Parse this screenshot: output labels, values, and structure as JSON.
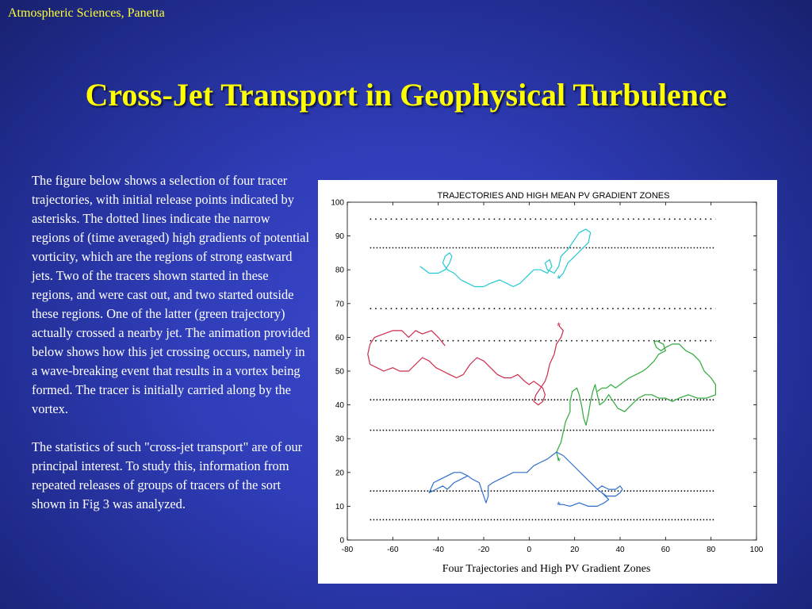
{
  "header": {
    "label": "Atmospheric Sciences, Panetta"
  },
  "slide_title": "Cross-Jet Transport in Geophysical Turbulence",
  "paragraphs": [
    "The figure below shows a selection of four tracer trajectories, with initial release points indicated by asterisks.  The dotted lines indicate the narrow regions of (time averaged) high gradients of potential vorticity, which are the regions of strong eastward jets.  Two of the tracers shown started in these regions, and were cast out, and two started outside these regions.  One of the latter (green trajectory) actually crossed a nearby jet.  The animation provided below shows how this jet crossing occurs, namely in a wave-breaking event that results in a vortex being formed.  The tracer is initially carried along by the vortex.",
    "The statistics of such \"cross-jet transport\" are of our principal interest.  To study this, information from repeated releases of groups of tracers of the sort shown in Fig 3 was analyzed."
  ],
  "chart_data": {
    "type": "line",
    "title": "TRAJECTORIES AND HIGH MEAN PV GRADIENT ZONES",
    "xlabel": "Four Trajectories and High PV Gradient Zones",
    "ylabel": "",
    "xlim": [
      -80,
      100
    ],
    "ylim": [
      0,
      100
    ],
    "xticks": [
      "-80",
      "-60",
      "-40",
      "-20",
      "0",
      "20",
      "40",
      "60",
      "80",
      "100"
    ],
    "yticks": [
      "0",
      "10",
      "20",
      "30",
      "40",
      "50",
      "60",
      "70",
      "80",
      "90",
      "100"
    ],
    "xtick_values": [
      -80,
      -60,
      -40,
      -20,
      0,
      20,
      40,
      60,
      80,
      100
    ],
    "ytick_values": [
      0,
      10,
      20,
      30,
      40,
      50,
      60,
      70,
      80,
      90,
      100
    ],
    "zone_lines": [
      {
        "y": 95,
        "x": [
          -70,
          82
        ],
        "style": "sparse"
      },
      {
        "y": 86.5,
        "x": [
          -70,
          82
        ],
        "style": "dense"
      },
      {
        "y": 68.5,
        "x": [
          -70,
          82
        ],
        "style": "sparse"
      },
      {
        "y": 59,
        "x": [
          -70,
          82
        ],
        "style": "sparse"
      },
      {
        "y": 41.5,
        "x": [
          -70,
          82
        ],
        "style": "dense"
      },
      {
        "y": 32.5,
        "x": [
          -70,
          82
        ],
        "style": "dense"
      },
      {
        "y": 14.5,
        "x": [
          -70,
          82
        ],
        "style": "dense"
      },
      {
        "y": 6,
        "x": [
          -70,
          82
        ],
        "style": "dense"
      }
    ],
    "series": [
      {
        "color": "#22c8d2",
        "release": [
          13,
          77.5
        ],
        "points": [
          [
            -48,
            81
          ],
          [
            -44,
            79
          ],
          [
            -40,
            79
          ],
          [
            -37,
            80
          ],
          [
            -35,
            82
          ],
          [
            -34,
            84
          ],
          [
            -35,
            85
          ],
          [
            -37,
            84
          ],
          [
            -38,
            82
          ],
          [
            -36,
            80
          ],
          [
            -33,
            79
          ],
          [
            -30,
            77
          ],
          [
            -27,
            76
          ],
          [
            -24,
            75
          ],
          [
            -20,
            75
          ],
          [
            -17,
            76
          ],
          [
            -13,
            77
          ],
          [
            -10,
            76
          ],
          [
            -7,
            75
          ],
          [
            -4,
            76
          ],
          [
            -1,
            78
          ],
          [
            2,
            80
          ],
          [
            5,
            80
          ],
          [
            8,
            79
          ],
          [
            10,
            81
          ],
          [
            9,
            83
          ],
          [
            7,
            82
          ],
          [
            8,
            80
          ],
          [
            11,
            79
          ],
          [
            13,
            81
          ],
          [
            14,
            84
          ],
          [
            17,
            86
          ],
          [
            20,
            89
          ],
          [
            22,
            91
          ],
          [
            25,
            92
          ],
          [
            27,
            91
          ],
          [
            26,
            88
          ],
          [
            23,
            86
          ],
          [
            20,
            84
          ],
          [
            17,
            82
          ],
          [
            15,
            79
          ],
          [
            13,
            77.5
          ]
        ]
      },
      {
        "color": "#cc2b4a",
        "release": [
          13,
          63.5
        ],
        "points": [
          [
            -37,
            57.5
          ],
          [
            -40,
            60
          ],
          [
            -43,
            62
          ],
          [
            -47,
            61
          ],
          [
            -50,
            62
          ],
          [
            -53,
            60
          ],
          [
            -56,
            62
          ],
          [
            -60,
            62
          ],
          [
            -64,
            61
          ],
          [
            -68,
            60
          ],
          [
            -70,
            58
          ],
          [
            -71,
            55
          ],
          [
            -70,
            52
          ],
          [
            -67,
            51
          ],
          [
            -64,
            50
          ],
          [
            -60,
            51
          ],
          [
            -57,
            50
          ],
          [
            -53,
            50
          ],
          [
            -50,
            52
          ],
          [
            -47,
            54
          ],
          [
            -44,
            53
          ],
          [
            -41,
            51
          ],
          [
            -38,
            50
          ],
          [
            -35,
            49
          ],
          [
            -32,
            48
          ],
          [
            -29,
            49
          ],
          [
            -26,
            52
          ],
          [
            -23,
            54
          ],
          [
            -20,
            53
          ],
          [
            -17,
            51
          ],
          [
            -14,
            49
          ],
          [
            -11,
            48
          ],
          [
            -8,
            48
          ],
          [
            -5,
            49
          ],
          [
            -2,
            47
          ],
          [
            0,
            46
          ],
          [
            2,
            47
          ],
          [
            4,
            46
          ],
          [
            6,
            45
          ],
          [
            7,
            43
          ],
          [
            6,
            41
          ],
          [
            4,
            40
          ],
          [
            2,
            41
          ],
          [
            3,
            43
          ],
          [
            5,
            45
          ],
          [
            7,
            47
          ],
          [
            8,
            49
          ],
          [
            9,
            52
          ],
          [
            11,
            55
          ],
          [
            12,
            58
          ],
          [
            14,
            60
          ],
          [
            15,
            62
          ],
          [
            13,
            63.5
          ]
        ]
      },
      {
        "color": "#2eaa3a",
        "release": [
          13,
          23.5
        ],
        "points": [
          [
            13,
            23.5
          ],
          [
            12,
            26
          ],
          [
            14,
            29
          ],
          [
            15,
            32
          ],
          [
            16,
            35
          ],
          [
            18,
            38
          ],
          [
            18,
            41
          ],
          [
            19,
            44
          ],
          [
            21,
            45
          ],
          [
            22,
            43
          ],
          [
            23,
            40
          ],
          [
            24,
            36
          ],
          [
            25,
            34
          ],
          [
            26,
            37
          ],
          [
            27,
            41
          ],
          [
            28,
            44
          ],
          [
            29,
            46
          ],
          [
            30,
            43
          ],
          [
            31,
            40
          ],
          [
            33,
            41
          ],
          [
            35,
            43
          ],
          [
            37,
            41
          ],
          [
            39,
            39
          ],
          [
            42,
            38
          ],
          [
            45,
            40
          ],
          [
            48,
            42
          ],
          [
            51,
            43
          ],
          [
            54,
            43
          ],
          [
            57,
            42
          ],
          [
            60,
            42
          ],
          [
            63,
            41
          ],
          [
            66,
            42
          ],
          [
            70,
            43
          ],
          [
            74,
            42
          ],
          [
            78,
            42
          ],
          [
            82,
            43
          ],
          [
            82,
            46
          ],
          [
            80,
            48
          ],
          [
            77,
            50
          ],
          [
            75,
            53
          ],
          [
            72,
            55
          ],
          [
            69,
            56
          ],
          [
            66,
            58
          ],
          [
            63,
            58
          ],
          [
            60,
            57
          ],
          [
            58,
            56
          ],
          [
            56,
            57
          ],
          [
            55,
            58.5
          ],
          [
            56,
            59
          ],
          [
            59,
            58
          ],
          [
            60,
            56
          ],
          [
            57,
            55
          ],
          [
            55,
            53
          ],
          [
            52,
            51
          ],
          [
            50,
            50
          ],
          [
            47,
            49
          ],
          [
            44,
            48
          ],
          [
            42,
            47
          ],
          [
            40,
            46
          ],
          [
            38,
            45
          ],
          [
            36,
            46
          ],
          [
            34,
            45
          ],
          [
            32,
            45
          ],
          [
            30,
            44
          ]
        ]
      },
      {
        "color": "#2f6fcc",
        "release": [
          13,
          10.5
        ],
        "points": [
          [
            13,
            10.5
          ],
          [
            15,
            10.5
          ],
          [
            18,
            10
          ],
          [
            22,
            11
          ],
          [
            26,
            10
          ],
          [
            30,
            10
          ],
          [
            33,
            11
          ],
          [
            35,
            12
          ],
          [
            32,
            14
          ],
          [
            30,
            15
          ],
          [
            32,
            16
          ],
          [
            35,
            15
          ],
          [
            38,
            15
          ],
          [
            40,
            16
          ],
          [
            41,
            15
          ],
          [
            40,
            14
          ],
          [
            38,
            13
          ],
          [
            36,
            13
          ],
          [
            34,
            13
          ],
          [
            32,
            14
          ],
          [
            30,
            15
          ],
          [
            27,
            17
          ],
          [
            24,
            19
          ],
          [
            21,
            21
          ],
          [
            18,
            23
          ],
          [
            15,
            25
          ],
          [
            12,
            26
          ],
          [
            10,
            25
          ],
          [
            8,
            24
          ],
          [
            5,
            23
          ],
          [
            2,
            22
          ],
          [
            -1,
            20
          ],
          [
            -4,
            20
          ],
          [
            -7,
            20
          ],
          [
            -10,
            19
          ],
          [
            -13,
            18
          ],
          [
            -16,
            17
          ],
          [
            -18,
            16
          ],
          [
            -18,
            13
          ],
          [
            -19,
            11
          ],
          [
            -20,
            13
          ],
          [
            -21,
            15
          ],
          [
            -22,
            17
          ],
          [
            -25,
            18
          ],
          [
            -27,
            19
          ],
          [
            -30,
            18
          ],
          [
            -33,
            17
          ],
          [
            -36,
            15
          ],
          [
            -38,
            16
          ],
          [
            -41,
            15
          ],
          [
            -44,
            14
          ],
          [
            -42,
            17
          ],
          [
            -39,
            18
          ],
          [
            -36,
            19
          ],
          [
            -33,
            20
          ],
          [
            -30,
            20
          ],
          [
            -27,
            19
          ]
        ]
      }
    ]
  }
}
